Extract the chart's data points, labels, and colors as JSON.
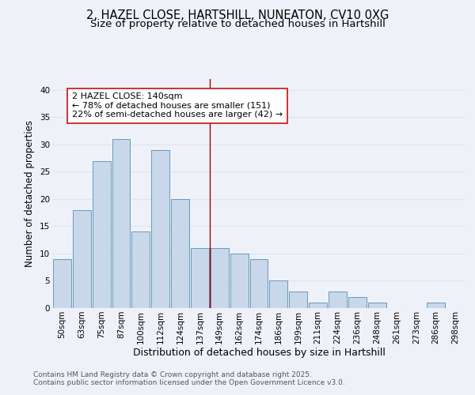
{
  "title_line1": "2, HAZEL CLOSE, HARTSHILL, NUNEATON, CV10 0XG",
  "title_line2": "Size of property relative to detached houses in Hartshill",
  "xlabel": "Distribution of detached houses by size in Hartshill",
  "ylabel": "Number of detached properties",
  "bar_labels": [
    "50sqm",
    "63sqm",
    "75sqm",
    "87sqm",
    "100sqm",
    "112sqm",
    "124sqm",
    "137sqm",
    "149sqm",
    "162sqm",
    "174sqm",
    "186sqm",
    "199sqm",
    "211sqm",
    "224sqm",
    "236sqm",
    "248sqm",
    "261sqm",
    "273sqm",
    "286sqm",
    "298sqm"
  ],
  "bar_values": [
    9,
    18,
    27,
    31,
    14,
    29,
    20,
    11,
    11,
    10,
    9,
    5,
    3,
    1,
    3,
    2,
    1,
    0,
    0,
    1,
    0
  ],
  "bar_color": "#c8d8ea",
  "bar_edge_color": "#6699bb",
  "vline_x_pos": 7.5,
  "vline_color": "#aa0000",
  "annotation_text": "2 HAZEL CLOSE: 140sqm\n← 78% of detached houses are smaller (151)\n22% of semi-detached houses are larger (42) →",
  "annotation_box_color": "#ffffff",
  "annotation_box_edge": "#cc2222",
  "ylim": [
    0,
    42
  ],
  "yticks": [
    0,
    5,
    10,
    15,
    20,
    25,
    30,
    35,
    40
  ],
  "bg_color": "#eef2f8",
  "grid_color": "#dde4ee",
  "footer_text": "Contains HM Land Registry data © Crown copyright and database right 2025.\nContains public sector information licensed under the Open Government Licence v3.0.",
  "title_fontsize": 10.5,
  "subtitle_fontsize": 9.5,
  "axis_label_fontsize": 8.5,
  "tick_fontsize": 7.5,
  "annotation_fontsize": 8,
  "footer_fontsize": 6.5
}
